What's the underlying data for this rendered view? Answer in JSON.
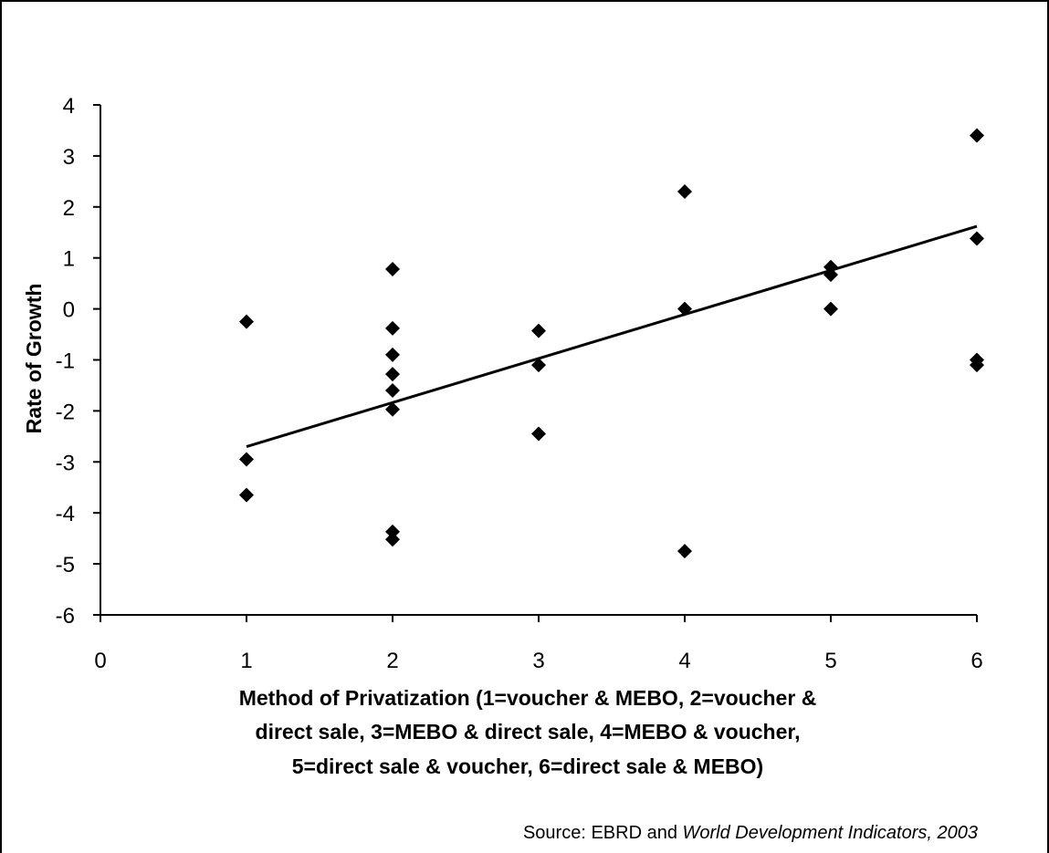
{
  "chart_data": {
    "type": "scatter",
    "title": "",
    "xlabel_lines": [
      "Method of Privatization (1=voucher & MEBO, 2=voucher &",
      "direct sale, 3=MEBO & direct sale, 4=MEBO & voucher,",
      "5=direct sale & voucher, 6=direct sale & MEBO)"
    ],
    "ylabel": "Rate of Growth",
    "xlim": [
      0,
      6
    ],
    "ylim": [
      -6,
      4
    ],
    "x_ticks": [
      "0",
      "1",
      "2",
      "3",
      "4",
      "5",
      "6"
    ],
    "y_ticks": [
      "4",
      "3",
      "2",
      "1",
      "0",
      "-1",
      "-2",
      "-3",
      "-4",
      "-5",
      "-6"
    ],
    "marker": "diamond",
    "marker_color": "#000000",
    "grid": false,
    "points": [
      {
        "x": 1,
        "y": -0.25
      },
      {
        "x": 1,
        "y": -2.95
      },
      {
        "x": 1,
        "y": -3.65
      },
      {
        "x": 2,
        "y": 0.78
      },
      {
        "x": 2,
        "y": -0.38
      },
      {
        "x": 2,
        "y": -0.9
      },
      {
        "x": 2,
        "y": -1.28
      },
      {
        "x": 2,
        "y": -1.6
      },
      {
        "x": 2,
        "y": -1.97
      },
      {
        "x": 2,
        "y": -4.37
      },
      {
        "x": 2,
        "y": -4.52
      },
      {
        "x": 3,
        "y": -0.43
      },
      {
        "x": 3,
        "y": -1.1
      },
      {
        "x": 3,
        "y": -2.45
      },
      {
        "x": 4,
        "y": 2.3
      },
      {
        "x": 4,
        "y": 0.0
      },
      {
        "x": 4,
        "y": -4.75
      },
      {
        "x": 5,
        "y": 0.82
      },
      {
        "x": 5,
        "y": 0.67
      },
      {
        "x": 5,
        "y": 0.0
      },
      {
        "x": 6,
        "y": 3.4
      },
      {
        "x": 6,
        "y": 1.38
      },
      {
        "x": 6,
        "y": -1.0
      },
      {
        "x": 6,
        "y": -1.1
      }
    ],
    "trendline": {
      "x_start": 1,
      "y_start": -2.7,
      "x_end": 6,
      "y_end": 1.62
    }
  },
  "source": {
    "prefix": "Source: EBRD and ",
    "italic": "World Development Indicators, 2003"
  }
}
